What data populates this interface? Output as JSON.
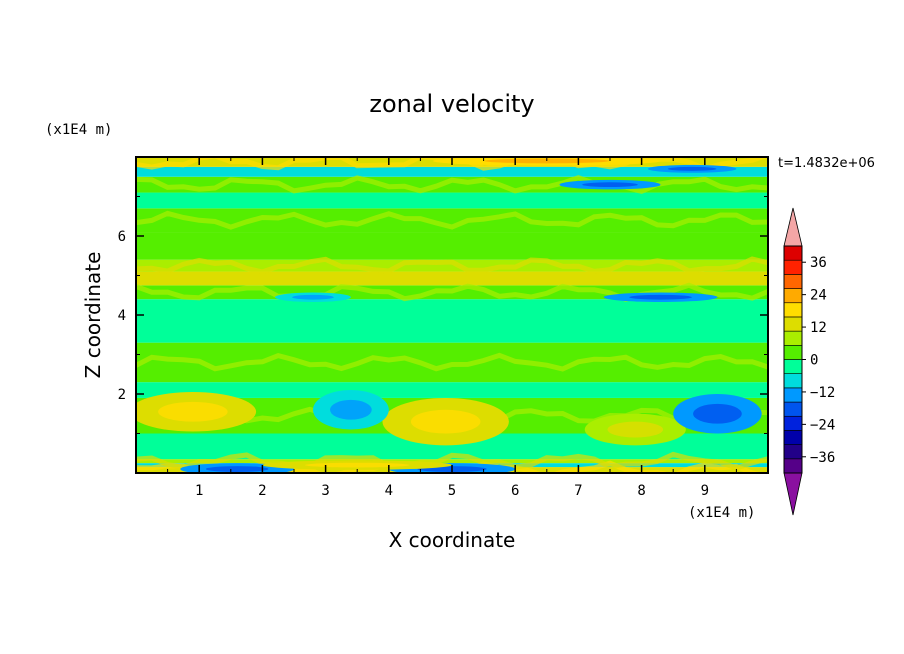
{
  "chart_data": {
    "type": "heatmap",
    "title": "zonal velocity",
    "xlabel": "X coordinate",
    "ylabel": "Z coordinate",
    "x_unit": "(x1E4 m)",
    "y_unit": "(x1E4 m)",
    "time_label": "t=1.4832e+06",
    "xlim": [
      0,
      10
    ],
    "ylim": [
      0,
      8
    ],
    "x_ticks": [
      "1",
      "2",
      "3",
      "4",
      "5",
      "6",
      "7",
      "8",
      "9"
    ],
    "y_ticks": [
      "2",
      "4",
      "6"
    ],
    "colorbar": {
      "labels": [
        "36",
        "24",
        "12",
        "0",
        "-12",
        "-24",
        "-36"
      ],
      "levels": [
        -42,
        -36,
        -30,
        -24,
        -18,
        -12,
        -6,
        0,
        6,
        12,
        18,
        24,
        30,
        36,
        42
      ],
      "colors": [
        "#550088",
        "#220088",
        "#0000aa",
        "#0022dd",
        "#0055ee",
        "#0099ff",
        "#00dddd",
        "#00ff99",
        "#55ee00",
        "#aaee00",
        "#dddd00",
        "#ffdd00",
        "#ffaa00",
        "#ff6600",
        "#ff2200",
        "#dd0000"
      ],
      "over_color": "#f4a6a6",
      "under_color": "#8a10a0"
    },
    "bands": [
      {
        "z": [
          0.0,
          0.15
        ],
        "value": 15
      },
      {
        "z": [
          0.15,
          0.25
        ],
        "value": -10
      },
      {
        "z": [
          0.25,
          0.35
        ],
        "value": 8
      },
      {
        "z": [
          0.35,
          1.0
        ],
        "value": -6
      },
      {
        "z": [
          1.0,
          1.9
        ],
        "value": 5
      },
      {
        "z": [
          1.9,
          2.3
        ],
        "value": -4
      },
      {
        "z": [
          2.3,
          3.3
        ],
        "value": 3
      },
      {
        "z": [
          3.3,
          4.4
        ],
        "value": -5
      },
      {
        "z": [
          4.4,
          4.75
        ],
        "value": 4
      },
      {
        "z": [
          4.75,
          5.1
        ],
        "value": 16
      },
      {
        "z": [
          5.1,
          5.4
        ],
        "value": 6
      },
      {
        "z": [
          5.4,
          6.1
        ],
        "value": 1
      },
      {
        "z": [
          6.1,
          6.7
        ],
        "value": 4
      },
      {
        "z": [
          6.7,
          7.1
        ],
        "value": -2
      },
      {
        "z": [
          7.1,
          7.5
        ],
        "value": 5
      },
      {
        "z": [
          7.5,
          7.75
        ],
        "value": -9
      },
      {
        "z": [
          7.75,
          8.0
        ],
        "value": 12
      }
    ],
    "features": [
      {
        "x": 0.9,
        "z": 1.55,
        "rx": 1.0,
        "rz": 0.5,
        "value": 14
      },
      {
        "x": 4.9,
        "z": 1.3,
        "rx": 1.0,
        "rz": 0.6,
        "value": 16
      },
      {
        "x": 7.9,
        "z": 1.1,
        "rx": 0.8,
        "rz": 0.4,
        "value": 10
      },
      {
        "x": 9.2,
        "z": 1.5,
        "rx": 0.7,
        "rz": 0.5,
        "value": -13
      },
      {
        "x": 3.4,
        "z": 1.6,
        "rx": 0.6,
        "rz": 0.5,
        "value": -8
      },
      {
        "x": 1.6,
        "z": 0.1,
        "rx": 0.9,
        "rz": 0.15,
        "value": -15
      },
      {
        "x": 5.0,
        "z": 0.1,
        "rx": 1.0,
        "rz": 0.15,
        "value": -14
      },
      {
        "x": 8.3,
        "z": 4.45,
        "rx": 0.9,
        "rz": 0.12,
        "value": -15
      },
      {
        "x": 2.8,
        "z": 4.45,
        "rx": 0.6,
        "rz": 0.12,
        "value": -12
      },
      {
        "x": 7.5,
        "z": 7.3,
        "rx": 0.8,
        "rz": 0.12,
        "value": -16
      },
      {
        "x": 8.8,
        "z": 7.7,
        "rx": 0.7,
        "rz": 0.1,
        "value": -14
      },
      {
        "x": 6.5,
        "z": 7.9,
        "rx": 1.8,
        "rz": 0.12,
        "value": 18
      },
      {
        "x": 3.5,
        "z": 0.2,
        "rx": 1.5,
        "rz": 0.12,
        "value": 15
      }
    ]
  }
}
